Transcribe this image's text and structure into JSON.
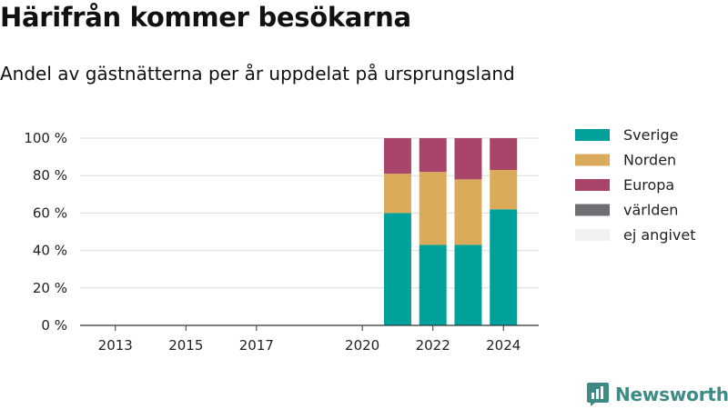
{
  "title": "Härifrån kommer besökarna",
  "subtitle": "Andel av gästnätterna per år uppdelat på ursprungsland",
  "brand": "Newsworthy",
  "chart_data": {
    "type": "bar",
    "stacked": true,
    "x_tick_labels": [
      "2013",
      "2015",
      "2017",
      "2020",
      "2022",
      "2024"
    ],
    "x_tick_values": [
      2013,
      2015,
      2017,
      2020,
      2022,
      2024
    ],
    "xlim": [
      2012,
      2025
    ],
    "categories": [
      2021,
      2022,
      2023,
      2024
    ],
    "ylim": [
      0,
      100
    ],
    "y_ticks": [
      0,
      20,
      40,
      60,
      80,
      100
    ],
    "y_tick_labels": [
      "0 %",
      "20 %",
      "40 %",
      "60 %",
      "80 %",
      "100 %"
    ],
    "grid": true,
    "legend_position": "right",
    "series": [
      {
        "name": "Sverige",
        "color": "#00a19a",
        "values": [
          60,
          43,
          43,
          62
        ]
      },
      {
        "name": "Norden",
        "color": "#d9ab5a",
        "values": [
          21,
          39,
          35,
          21
        ]
      },
      {
        "name": "Europa",
        "color": "#a9446a",
        "values": [
          19,
          18,
          22,
          17
        ]
      },
      {
        "name": "världen",
        "color": "#6f6f73",
        "values": [
          0,
          0,
          0,
          0
        ]
      },
      {
        "name": "ej angivet",
        "color": "#f2f2f2",
        "values": [
          0,
          0,
          0,
          0
        ]
      }
    ]
  }
}
